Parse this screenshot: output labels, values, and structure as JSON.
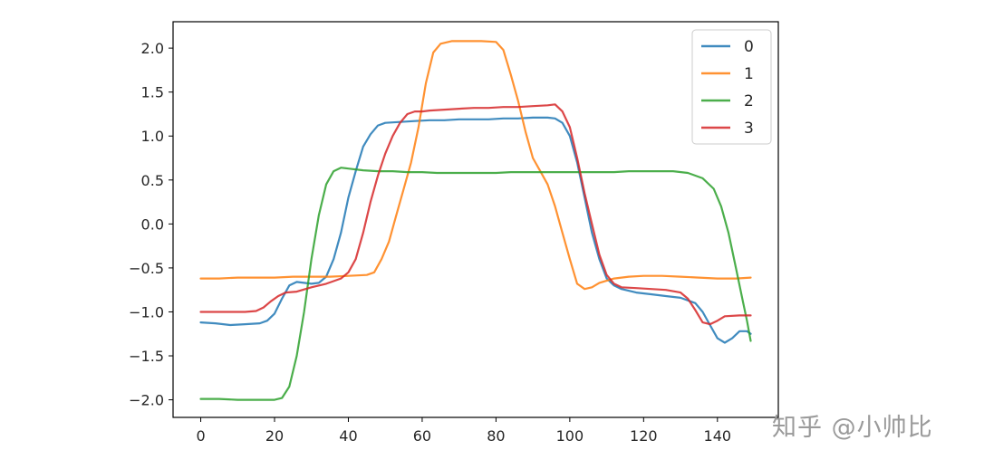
{
  "chart_data": {
    "type": "line",
    "title": "",
    "xlabel": "",
    "ylabel": "",
    "xlim": [
      -7.5,
      156.5
    ],
    "ylim": [
      -2.2,
      2.3
    ],
    "xticks": [
      0,
      20,
      40,
      60,
      80,
      100,
      120,
      140
    ],
    "yticks": [
      -2.0,
      -1.5,
      -1.0,
      -0.5,
      0.0,
      0.5,
      1.0,
      1.5,
      2.0
    ],
    "ytick_labels": [
      "−2.0",
      "−1.5",
      "−1.0",
      "−0.5",
      "0.0",
      "0.5",
      "1.0",
      "1.5",
      "2.0"
    ],
    "xtick_labels": [
      "0",
      "20",
      "40",
      "60",
      "80",
      "100",
      "120",
      "140"
    ],
    "grid": false,
    "legend": {
      "position": "top-right"
    },
    "series": [
      {
        "name": "0",
        "color": "#1f77b4",
        "points": [
          [
            0,
            -1.12
          ],
          [
            4,
            -1.13
          ],
          [
            8,
            -1.15
          ],
          [
            12,
            -1.14
          ],
          [
            16,
            -1.13
          ],
          [
            18,
            -1.1
          ],
          [
            20,
            -1.02
          ],
          [
            22,
            -0.85
          ],
          [
            24,
            -0.7
          ],
          [
            26,
            -0.66
          ],
          [
            30,
            -0.68
          ],
          [
            32,
            -0.67
          ],
          [
            34,
            -0.6
          ],
          [
            36,
            -0.4
          ],
          [
            38,
            -0.1
          ],
          [
            40,
            0.3
          ],
          [
            42,
            0.6
          ],
          [
            44,
            0.88
          ],
          [
            46,
            1.02
          ],
          [
            48,
            1.12
          ],
          [
            50,
            1.15
          ],
          [
            54,
            1.16
          ],
          [
            58,
            1.17
          ],
          [
            62,
            1.18
          ],
          [
            66,
            1.18
          ],
          [
            70,
            1.19
          ],
          [
            74,
            1.19
          ],
          [
            78,
            1.19
          ],
          [
            82,
            1.2
          ],
          [
            86,
            1.2
          ],
          [
            90,
            1.21
          ],
          [
            94,
            1.21
          ],
          [
            96,
            1.2
          ],
          [
            98,
            1.15
          ],
          [
            100,
            1.0
          ],
          [
            102,
            0.7
          ],
          [
            104,
            0.3
          ],
          [
            106,
            -0.1
          ],
          [
            108,
            -0.4
          ],
          [
            110,
            -0.62
          ],
          [
            112,
            -0.7
          ],
          [
            114,
            -0.74
          ],
          [
            118,
            -0.78
          ],
          [
            122,
            -0.8
          ],
          [
            126,
            -0.82
          ],
          [
            130,
            -0.84
          ],
          [
            134,
            -0.9
          ],
          [
            136,
            -1.0
          ],
          [
            138,
            -1.15
          ],
          [
            140,
            -1.3
          ],
          [
            142,
            -1.35
          ],
          [
            144,
            -1.3
          ],
          [
            146,
            -1.22
          ],
          [
            148,
            -1.22
          ],
          [
            149,
            -1.25
          ]
        ]
      },
      {
        "name": "1",
        "color": "#ff7f0e",
        "points": [
          [
            0,
            -0.62
          ],
          [
            5,
            -0.62
          ],
          [
            10,
            -0.61
          ],
          [
            15,
            -0.61
          ],
          [
            20,
            -0.61
          ],
          [
            25,
            -0.6
          ],
          [
            30,
            -0.6
          ],
          [
            35,
            -0.6
          ],
          [
            40,
            -0.59
          ],
          [
            45,
            -0.58
          ],
          [
            47,
            -0.55
          ],
          [
            49,
            -0.4
          ],
          [
            51,
            -0.2
          ],
          [
            53,
            0.1
          ],
          [
            55,
            0.4
          ],
          [
            57,
            0.7
          ],
          [
            59,
            1.1
          ],
          [
            61,
            1.6
          ],
          [
            63,
            1.95
          ],
          [
            65,
            2.05
          ],
          [
            68,
            2.08
          ],
          [
            72,
            2.08
          ],
          [
            76,
            2.08
          ],
          [
            80,
            2.07
          ],
          [
            82,
            1.98
          ],
          [
            84,
            1.7
          ],
          [
            86,
            1.4
          ],
          [
            88,
            1.05
          ],
          [
            90,
            0.75
          ],
          [
            92,
            0.6
          ],
          [
            94,
            0.45
          ],
          [
            96,
            0.2
          ],
          [
            98,
            -0.1
          ],
          [
            100,
            -0.4
          ],
          [
            102,
            -0.68
          ],
          [
            104,
            -0.74
          ],
          [
            106,
            -0.72
          ],
          [
            108,
            -0.67
          ],
          [
            112,
            -0.62
          ],
          [
            116,
            -0.6
          ],
          [
            120,
            -0.59
          ],
          [
            125,
            -0.59
          ],
          [
            130,
            -0.6
          ],
          [
            135,
            -0.61
          ],
          [
            140,
            -0.62
          ],
          [
            145,
            -0.62
          ],
          [
            149,
            -0.61
          ]
        ]
      },
      {
        "name": "2",
        "color": "#2ca02c",
        "points": [
          [
            0,
            -1.99
          ],
          [
            5,
            -1.99
          ],
          [
            10,
            -2.0
          ],
          [
            15,
            -2.0
          ],
          [
            20,
            -2.0
          ],
          [
            22,
            -1.98
          ],
          [
            24,
            -1.85
          ],
          [
            26,
            -1.5
          ],
          [
            28,
            -1.0
          ],
          [
            30,
            -0.4
          ],
          [
            32,
            0.1
          ],
          [
            34,
            0.45
          ],
          [
            36,
            0.6
          ],
          [
            38,
            0.64
          ],
          [
            40,
            0.63
          ],
          [
            44,
            0.61
          ],
          [
            48,
            0.6
          ],
          [
            52,
            0.6
          ],
          [
            56,
            0.59
          ],
          [
            60,
            0.59
          ],
          [
            64,
            0.58
          ],
          [
            68,
            0.58
          ],
          [
            72,
            0.58
          ],
          [
            76,
            0.58
          ],
          [
            80,
            0.58
          ],
          [
            84,
            0.59
          ],
          [
            88,
            0.59
          ],
          [
            92,
            0.59
          ],
          [
            96,
            0.59
          ],
          [
            100,
            0.59
          ],
          [
            104,
            0.59
          ],
          [
            108,
            0.59
          ],
          [
            112,
            0.59
          ],
          [
            116,
            0.6
          ],
          [
            120,
            0.6
          ],
          [
            124,
            0.6
          ],
          [
            128,
            0.6
          ],
          [
            132,
            0.58
          ],
          [
            136,
            0.52
          ],
          [
            139,
            0.4
          ],
          [
            141,
            0.2
          ],
          [
            143,
            -0.1
          ],
          [
            145,
            -0.5
          ],
          [
            147,
            -0.9
          ],
          [
            148,
            -1.1
          ],
          [
            149,
            -1.33
          ]
        ]
      },
      {
        "name": "3",
        "color": "#d62728",
        "points": [
          [
            0,
            -1.0
          ],
          [
            4,
            -1.0
          ],
          [
            8,
            -1.0
          ],
          [
            12,
            -1.0
          ],
          [
            15,
            -0.99
          ],
          [
            17,
            -0.95
          ],
          [
            19,
            -0.88
          ],
          [
            21,
            -0.82
          ],
          [
            23,
            -0.78
          ],
          [
            26,
            -0.77
          ],
          [
            30,
            -0.72
          ],
          [
            34,
            -0.68
          ],
          [
            38,
            -0.62
          ],
          [
            40,
            -0.55
          ],
          [
            42,
            -0.4
          ],
          [
            44,
            -0.1
          ],
          [
            46,
            0.25
          ],
          [
            48,
            0.55
          ],
          [
            50,
            0.8
          ],
          [
            52,
            1.0
          ],
          [
            54,
            1.15
          ],
          [
            56,
            1.25
          ],
          [
            58,
            1.28
          ],
          [
            60,
            1.28
          ],
          [
            62,
            1.29
          ],
          [
            66,
            1.3
          ],
          [
            70,
            1.31
          ],
          [
            74,
            1.32
          ],
          [
            78,
            1.32
          ],
          [
            82,
            1.33
          ],
          [
            86,
            1.33
          ],
          [
            90,
            1.34
          ],
          [
            94,
            1.35
          ],
          [
            96,
            1.36
          ],
          [
            98,
            1.28
          ],
          [
            100,
            1.1
          ],
          [
            102,
            0.75
          ],
          [
            104,
            0.35
          ],
          [
            106,
            0.0
          ],
          [
            108,
            -0.35
          ],
          [
            110,
            -0.58
          ],
          [
            112,
            -0.68
          ],
          [
            114,
            -0.72
          ],
          [
            118,
            -0.73
          ],
          [
            122,
            -0.74
          ],
          [
            126,
            -0.75
          ],
          [
            130,
            -0.78
          ],
          [
            132,
            -0.85
          ],
          [
            134,
            -0.98
          ],
          [
            136,
            -1.12
          ],
          [
            138,
            -1.14
          ],
          [
            140,
            -1.1
          ],
          [
            142,
            -1.05
          ],
          [
            146,
            -1.04
          ],
          [
            149,
            -1.04
          ]
        ]
      }
    ]
  },
  "watermark": "知乎 @小帅比"
}
